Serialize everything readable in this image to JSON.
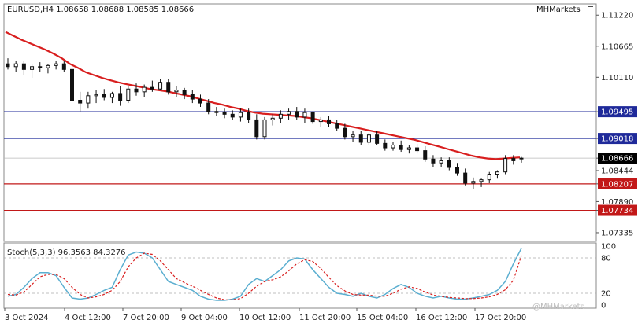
{
  "header": {
    "symbol_info": "EURUSD,H4  1.08658 1.08688 1.08585 1.08666",
    "brand": "MHMarkets"
  },
  "stoch_label": "Stoch(5,3,3) 96.3563 84.3276",
  "watermark": "@MHMarkets",
  "colors": {
    "ma": "#d81e1e",
    "blue_level": "#1f2a9a",
    "red_level": "#c21818",
    "stoch_main": "#5aaed0",
    "stoch_signal": "#d81e1e",
    "current_price_bg": "#000000"
  },
  "chart_data": {
    "type": "candlestick",
    "ylim": [
      1.0718,
      1.1142
    ],
    "price_ticks": [
      "1.11220",
      "1.10665",
      "1.10110",
      "1.09495",
      "1.09018",
      "1.08666",
      "1.08444",
      "1.08207",
      "1.07890",
      "1.07734",
      "1.07335"
    ],
    "blue_levels": [
      1.09495,
      1.09018
    ],
    "red_levels": [
      1.08207,
      1.07734
    ],
    "current_price": 1.08666,
    "x_labels": [
      "3 Oct 2024",
      "4 Oct 12:00",
      "7 Oct 20:00",
      "9 Oct 04:00",
      "10 Oct 12:00",
      "11 Oct 20:00",
      "15 Oct 04:00",
      "16 Oct 12:00",
      "17 Oct 20:00"
    ],
    "candles": [
      [
        1.1035,
        1.1045,
        1.1025,
        1.103
      ],
      [
        1.103,
        1.104,
        1.102,
        1.1035
      ],
      [
        1.1035,
        1.104,
        1.1015,
        1.1025
      ],
      [
        1.1025,
        1.1035,
        1.101,
        1.103
      ],
      [
        1.103,
        1.1038,
        1.102,
        1.1028
      ],
      [
        1.1028,
        1.1035,
        1.1018,
        1.1032
      ],
      [
        1.1032,
        1.104,
        1.1025,
        1.1035
      ],
      [
        1.1035,
        1.104,
        1.102,
        1.1025
      ],
      [
        1.1025,
        1.103,
        1.095,
        1.097
      ],
      [
        1.097,
        1.0985,
        1.095,
        1.0965
      ],
      [
        1.0965,
        1.0985,
        1.0955,
        1.0978
      ],
      [
        1.0978,
        1.0988,
        1.0965,
        1.098
      ],
      [
        1.098,
        1.099,
        1.097,
        1.0975
      ],
      [
        1.0975,
        1.0985,
        1.0965,
        1.0982
      ],
      [
        1.0982,
        1.0995,
        1.096,
        1.097
      ],
      [
        1.097,
        1.0995,
        1.0965,
        1.099
      ],
      [
        1.099,
        1.1,
        1.0978,
        1.0985
      ],
      [
        1.0985,
        1.0998,
        1.0975,
        1.0993
      ],
      [
        1.0993,
        1.1005,
        1.0985,
        1.099
      ],
      [
        1.099,
        1.1008,
        1.0988,
        1.1002
      ],
      [
        1.1002,
        1.1008,
        1.098,
        1.0985
      ],
      [
        1.0985,
        1.0995,
        1.0975,
        1.0988
      ],
      [
        1.0988,
        1.0992,
        1.0972,
        1.098
      ],
      [
        1.098,
        1.0988,
        1.0965,
        1.0972
      ],
      [
        1.0972,
        1.098,
        1.0958,
        1.0965
      ],
      [
        1.0965,
        1.0972,
        1.0945,
        1.095
      ],
      [
        1.095,
        1.0958,
        1.0942,
        1.0948
      ],
      [
        1.0948,
        1.0955,
        1.0938,
        1.0945
      ],
      [
        1.0945,
        1.0952,
        1.0935,
        1.094
      ],
      [
        1.094,
        1.0955,
        1.0932,
        1.0948
      ],
      [
        1.0948,
        1.0955,
        1.093,
        1.0935
      ],
      [
        1.0935,
        1.0945,
        1.09,
        1.0905
      ],
      [
        1.0905,
        1.094,
        1.09,
        1.0935
      ],
      [
        1.0935,
        1.0945,
        1.0925,
        1.0938
      ],
      [
        1.0938,
        1.0952,
        1.093,
        1.0945
      ],
      [
        1.0945,
        1.0955,
        1.0935,
        1.095
      ],
      [
        1.095,
        1.0958,
        1.0935,
        1.094
      ],
      [
        1.094,
        1.0955,
        1.093,
        1.0948
      ],
      [
        1.0948,
        1.095,
        1.0928,
        1.0932
      ],
      [
        1.0932,
        1.094,
        1.0922,
        1.0935
      ],
      [
        1.0935,
        1.0942,
        1.0922,
        1.0928
      ],
      [
        1.0928,
        1.0935,
        1.0915,
        1.092
      ],
      [
        1.092,
        1.0928,
        1.09,
        1.0905
      ],
      [
        1.0905,
        1.0915,
        1.0895,
        1.0908
      ],
      [
        1.0908,
        1.0915,
        1.089,
        1.0895
      ],
      [
        1.0895,
        1.0912,
        1.089,
        1.0908
      ],
      [
        1.0908,
        1.0915,
        1.089,
        1.0893
      ],
      [
        1.0893,
        1.09,
        1.088,
        1.0885
      ],
      [
        1.0885,
        1.0895,
        1.088,
        1.089
      ],
      [
        1.089,
        1.0898,
        1.0878,
        1.0882
      ],
      [
        1.0882,
        1.089,
        1.0875,
        1.0885
      ],
      [
        1.0885,
        1.0892,
        1.0875,
        1.088
      ],
      [
        1.088,
        1.0888,
        1.086,
        1.0865
      ],
      [
        1.0865,
        1.0872,
        1.085,
        1.0858
      ],
      [
        1.0858,
        1.0868,
        1.085,
        1.0862
      ],
      [
        1.0862,
        1.0868,
        1.0845,
        1.085
      ],
      [
        1.085,
        1.0858,
        1.0835,
        1.084
      ],
      [
        1.084,
        1.0848,
        1.0818,
        1.0822
      ],
      [
        1.0822,
        1.0832,
        1.0812,
        1.0825
      ],
      [
        1.0825,
        1.083,
        1.0815,
        1.0828
      ],
      [
        1.0828,
        1.0842,
        1.0822,
        1.0838
      ],
      [
        1.0838,
        1.0845,
        1.083,
        1.0842
      ],
      [
        1.0842,
        1.0872,
        1.0838,
        1.0866
      ],
      [
        1.0866,
        1.0872,
        1.0855,
        1.0862
      ],
      [
        1.08658,
        1.08688,
        1.08585,
        1.08666
      ]
    ],
    "ma": [
      1.1092,
      1.1085,
      1.1078,
      1.1072,
      1.1066,
      1.106,
      1.1053,
      1.1045,
      1.1035,
      1.1028,
      1.102,
      1.1015,
      1.101,
      1.1006,
      1.1002,
      1.0999,
      1.0996,
      1.0993,
      1.099,
      1.0988,
      1.0986,
      1.0983,
      1.098,
      1.0977,
      1.0973,
      1.0969,
      1.0965,
      1.0962,
      1.0958,
      1.0955,
      1.0951,
      1.0948,
      1.0946,
      1.0945,
      1.0944,
      1.0943,
      1.0942,
      1.094,
      1.0938,
      1.0935,
      1.0932,
      1.0929,
      1.0926,
      1.0923,
      1.092,
      1.0917,
      1.0914,
      1.0911,
      1.0908,
      1.0905,
      1.0902,
      1.0899,
      1.0895,
      1.0891,
      1.0887,
      1.0883,
      1.0879,
      1.0875,
      1.0871,
      1.0868,
      1.0866,
      1.0865,
      1.0866,
      1.0867,
      1.0868
    ],
    "stoch_levels": [
      "100",
      "80",
      "20",
      "0"
    ],
    "stoch_main": [
      15,
      18,
      30,
      45,
      55,
      55,
      50,
      30,
      12,
      10,
      12,
      18,
      25,
      30,
      60,
      85,
      90,
      88,
      80,
      60,
      40,
      35,
      30,
      25,
      15,
      10,
      8,
      8,
      10,
      15,
      35,
      45,
      40,
      50,
      60,
      75,
      80,
      78,
      60,
      45,
      30,
      20,
      18,
      15,
      20,
      15,
      12,
      18,
      28,
      35,
      30,
      20,
      15,
      12,
      15,
      12,
      10,
      10,
      12,
      15,
      18,
      25,
      40,
      70,
      96.3563
    ],
    "stoch_signal": [
      18,
      17,
      22,
      35,
      48,
      52,
      52,
      45,
      30,
      18,
      12,
      14,
      18,
      25,
      40,
      65,
      80,
      88,
      86,
      75,
      60,
      45,
      38,
      32,
      25,
      18,
      12,
      9,
      9,
      11,
      20,
      32,
      40,
      43,
      48,
      58,
      70,
      77,
      74,
      62,
      47,
      33,
      24,
      18,
      17,
      17,
      15,
      15,
      20,
      27,
      31,
      28,
      22,
      17,
      15,
      13,
      12,
      11,
      11,
      12,
      14,
      18,
      26,
      42,
      84.3276
    ]
  }
}
